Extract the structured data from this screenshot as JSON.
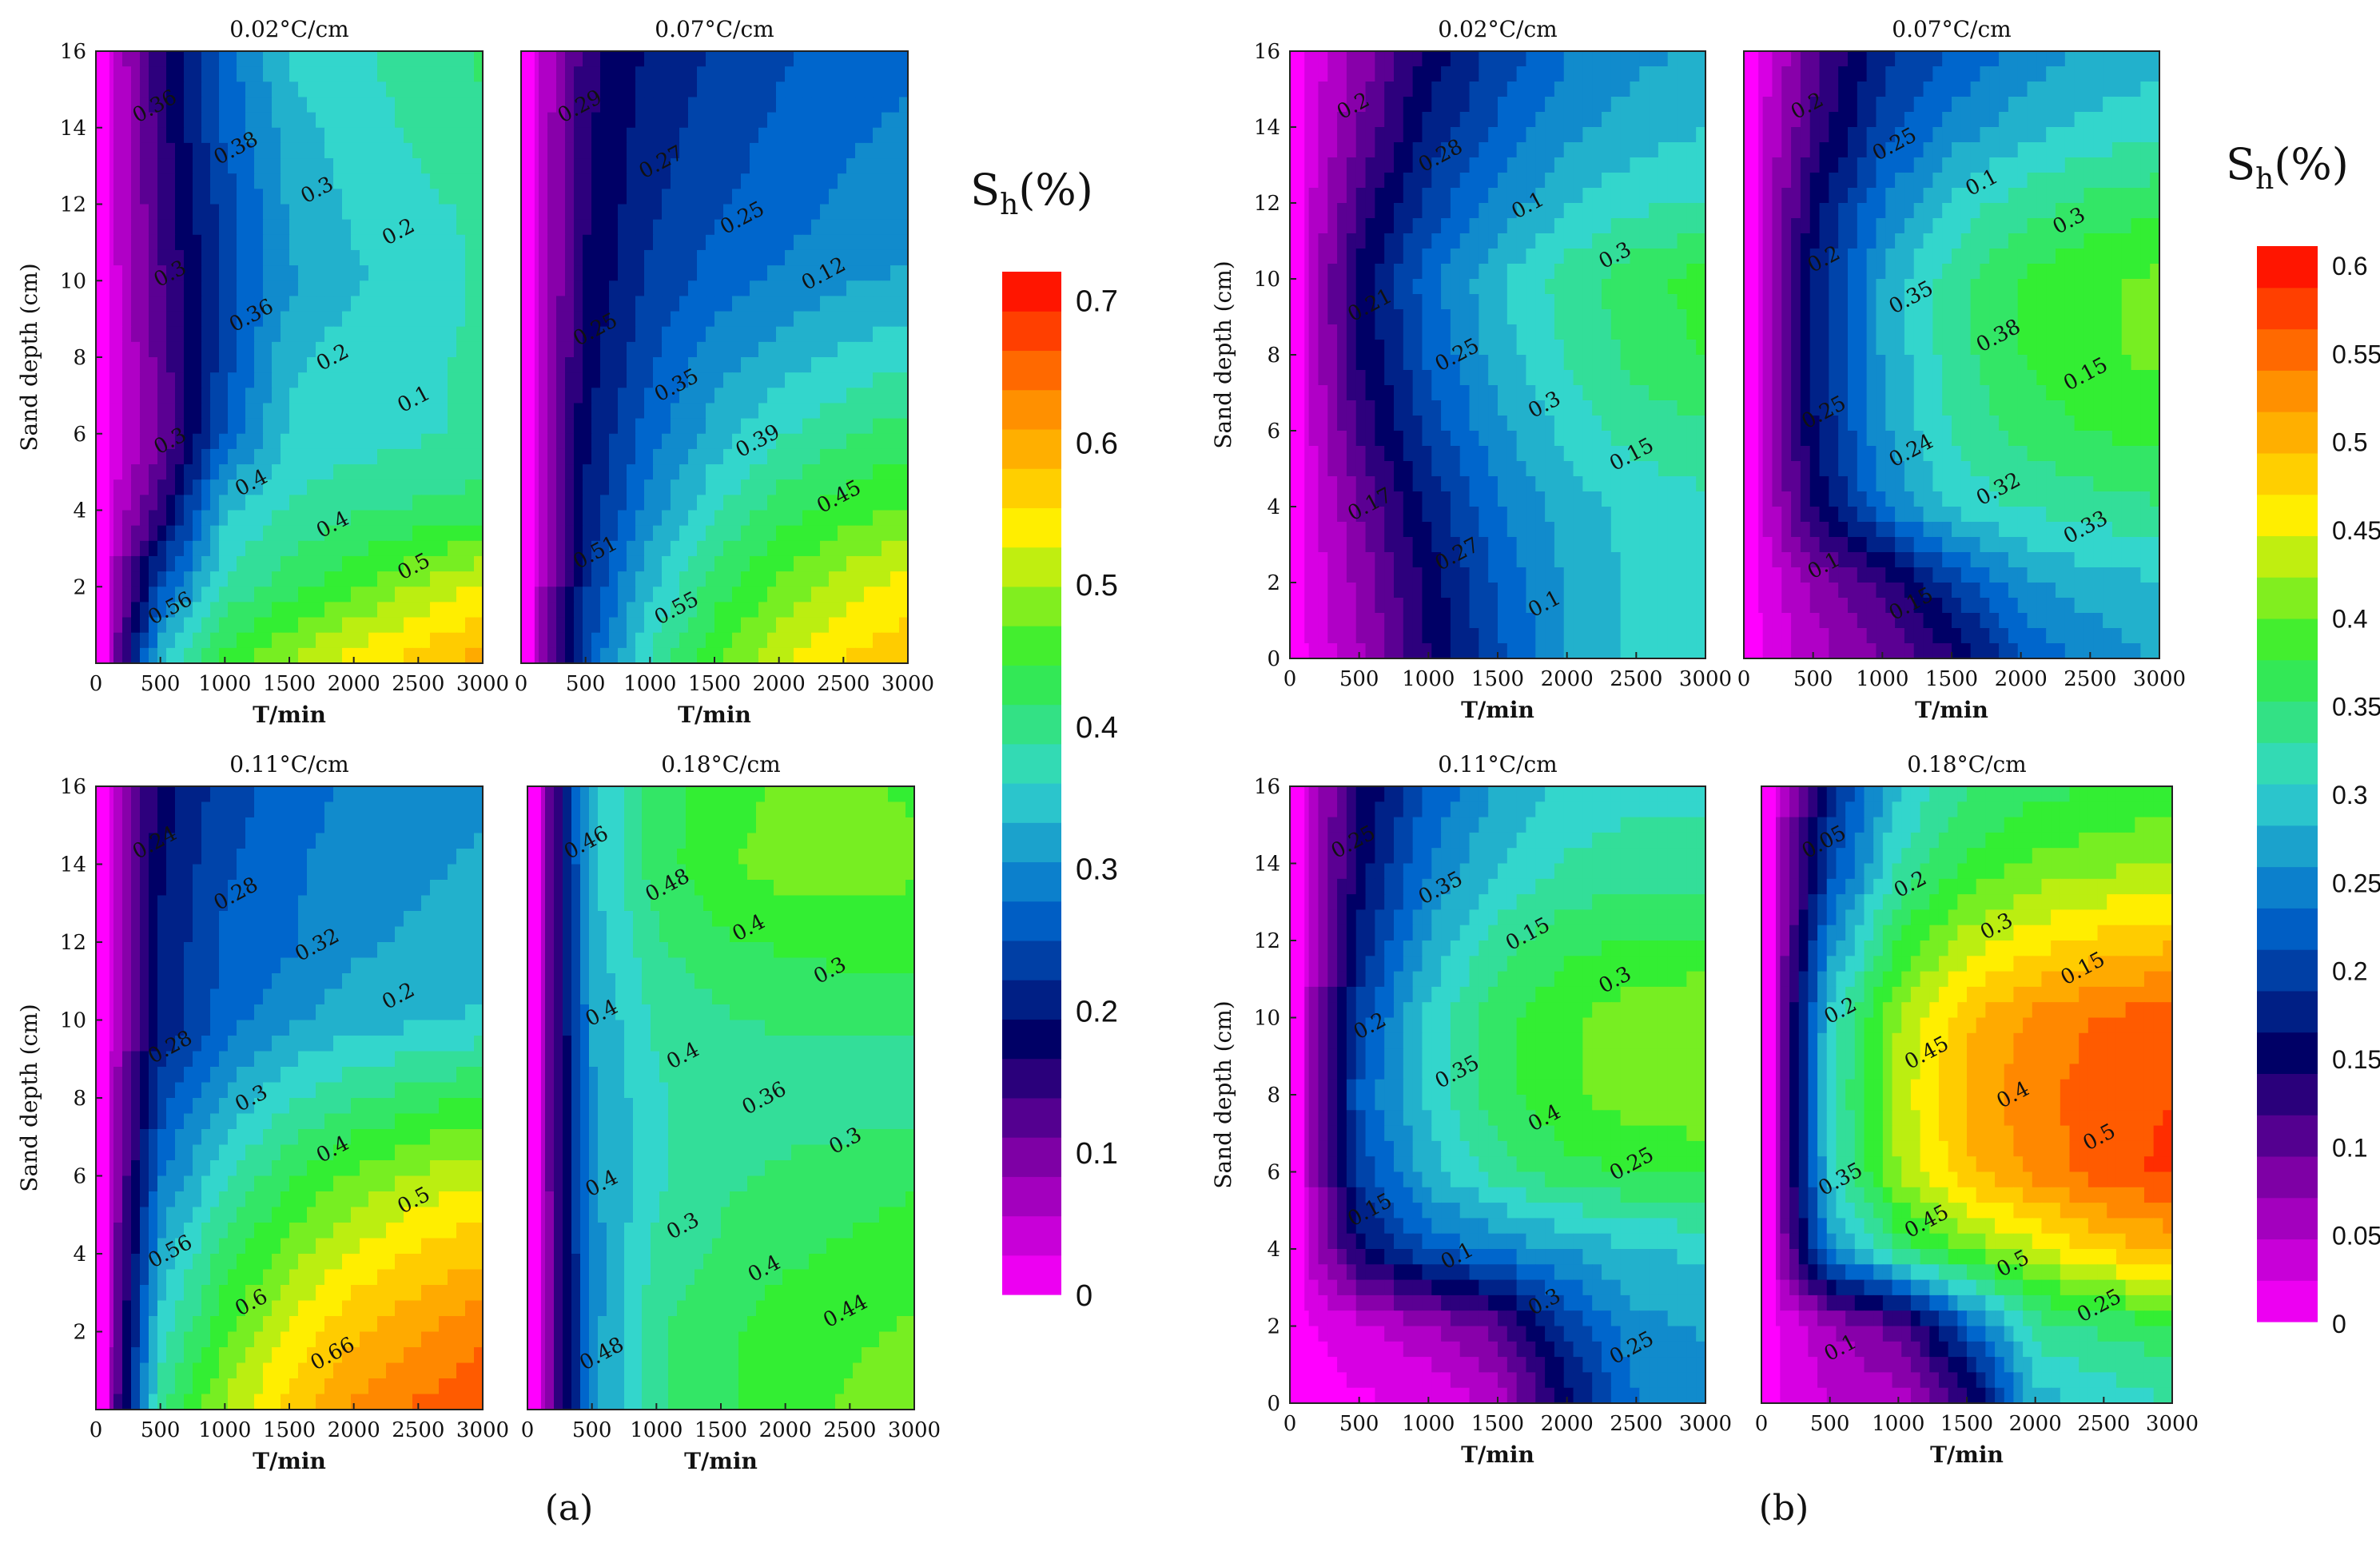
{
  "chart_data": [
    {
      "type": "heatmap",
      "title": "0.02°C/cm",
      "group": "a",
      "xlabel": "T/min",
      "ylabel": "Sand  depth  (cm)",
      "xlim": [
        0,
        3000
      ],
      "ylim": [
        0,
        16
      ],
      "xticks": [
        "0",
        "500",
        "1000",
        "1500",
        "2000",
        "2500",
        "3000"
      ],
      "yticks": [
        "2",
        "4",
        "6",
        "8",
        "10",
        "12",
        "14",
        "16"
      ],
      "x": [
        0,
        500,
        1000,
        1500,
        2000,
        2500,
        3000
      ],
      "y": [
        0,
        2,
        4,
        6,
        8,
        10,
        12,
        14,
        16
      ],
      "z": [
        [
          0,
          0.35,
          0.45,
          0.5,
          0.54,
          0.57,
          0.6
        ],
        [
          0,
          0.25,
          0.38,
          0.42,
          0.46,
          0.5,
          0.53
        ],
        [
          0,
          0.15,
          0.34,
          0.38,
          0.4,
          0.41,
          0.42
        ],
        [
          0,
          0.1,
          0.26,
          0.35,
          0.36,
          0.37,
          0.38
        ],
        [
          0,
          0.12,
          0.24,
          0.34,
          0.36,
          0.37,
          0.38
        ],
        [
          0,
          0.13,
          0.24,
          0.31,
          0.34,
          0.36,
          0.38
        ],
        [
          0,
          0.14,
          0.24,
          0.32,
          0.35,
          0.37,
          0.38
        ],
        [
          0,
          0.15,
          0.26,
          0.33,
          0.36,
          0.38,
          0.4
        ],
        [
          0,
          0.16,
          0.27,
          0.35,
          0.37,
          0.39,
          0.41
        ]
      ],
      "contour_labels": [
        "0.36",
        "0.38",
        "0.3",
        "0.2",
        "0.3",
        "0.36",
        "0.2",
        "0.1",
        "0.3",
        "0.4",
        "0.4",
        "0.5",
        "0.56"
      ]
    },
    {
      "type": "heatmap",
      "title": "0.07°C/cm",
      "group": "a",
      "xlabel": "T/min",
      "ylabel": "",
      "xlim": [
        0,
        3000
      ],
      "ylim": [
        0,
        16
      ],
      "xticks": [
        "0",
        "500",
        "1000",
        "1500",
        "2000",
        "2500",
        "3000"
      ],
      "yticks": [],
      "x": [
        0,
        500,
        1000,
        1500,
        2000,
        2500,
        3000
      ],
      "y": [
        0,
        2,
        4,
        6,
        8,
        10,
        12,
        14,
        16
      ],
      "z": [
        [
          0,
          0.25,
          0.38,
          0.46,
          0.52,
          0.56,
          0.58
        ],
        [
          0,
          0.22,
          0.34,
          0.42,
          0.47,
          0.51,
          0.54
        ],
        [
          0,
          0.2,
          0.3,
          0.37,
          0.42,
          0.45,
          0.47
        ],
        [
          0,
          0.19,
          0.27,
          0.33,
          0.37,
          0.4,
          0.42
        ],
        [
          0,
          0.18,
          0.25,
          0.3,
          0.33,
          0.35,
          0.37
        ],
        [
          0,
          0.17,
          0.23,
          0.27,
          0.29,
          0.31,
          0.32
        ],
        [
          0,
          0.16,
          0.22,
          0.25,
          0.27,
          0.29,
          0.3
        ],
        [
          0,
          0.16,
          0.21,
          0.24,
          0.26,
          0.28,
          0.29
        ],
        [
          0,
          0.15,
          0.2,
          0.23,
          0.25,
          0.27,
          0.28
        ]
      ],
      "contour_labels": [
        "0.29",
        "0.27",
        "0.25",
        "0.12",
        "0.25",
        "0.35",
        "0.39",
        "0.45",
        "0.51",
        "0.55"
      ]
    },
    {
      "type": "heatmap",
      "title": "0.11°C/cm",
      "group": "a",
      "xlabel": "T/min",
      "ylabel": "Sand  depth  (cm)",
      "xlim": [
        0,
        3000
      ],
      "ylim": [
        0,
        16
      ],
      "xticks": [
        "0",
        "500",
        "1000",
        "1500",
        "2000",
        "2500",
        "3000"
      ],
      "yticks": [
        "2",
        "4",
        "6",
        "8",
        "10",
        "12",
        "14",
        "16"
      ],
      "x": [
        0,
        500,
        1000,
        1500,
        2000,
        2500,
        3000
      ],
      "y": [
        0,
        2,
        4,
        6,
        8,
        10,
        12,
        14,
        16
      ],
      "z": [
        [
          0,
          0.4,
          0.5,
          0.57,
          0.62,
          0.65,
          0.67
        ],
        [
          0,
          0.36,
          0.46,
          0.53,
          0.58,
          0.61,
          0.64
        ],
        [
          0,
          0.32,
          0.42,
          0.48,
          0.53,
          0.56,
          0.58
        ],
        [
          0,
          0.28,
          0.37,
          0.43,
          0.47,
          0.5,
          0.52
        ],
        [
          0,
          0.24,
          0.32,
          0.37,
          0.4,
          0.42,
          0.44
        ],
        [
          0,
          0.2,
          0.27,
          0.31,
          0.33,
          0.34,
          0.35
        ],
        [
          0,
          0.2,
          0.26,
          0.28,
          0.31,
          0.32,
          0.33
        ],
        [
          0,
          0.19,
          0.25,
          0.28,
          0.3,
          0.31,
          0.32
        ],
        [
          0,
          0.18,
          0.24,
          0.27,
          0.29,
          0.3,
          0.31
        ]
      ],
      "contour_labels": [
        "0.24",
        "0.28",
        "0.32",
        "0.2",
        "0.28",
        "0.3",
        "0.4",
        "0.5",
        "0.56",
        "0.6",
        "0.66"
      ]
    },
    {
      "type": "heatmap",
      "title": "0.18°C/cm",
      "group": "a",
      "xlabel": "T/min",
      "ylabel": "",
      "xlim": [
        0,
        3000
      ],
      "ylim": [
        0,
        16
      ],
      "xticks": [
        "0",
        "500",
        "1000",
        "1500",
        "2000",
        "2500",
        "3000"
      ],
      "yticks": [],
      "x": [
        0,
        500,
        1000,
        1500,
        2000,
        2500,
        3000
      ],
      "y": [
        0,
        2,
        4,
        6,
        8,
        10,
        12,
        14,
        16
      ],
      "z": [
        [
          0,
          0.3,
          0.4,
          0.43,
          0.45,
          0.47,
          0.48
        ],
        [
          0,
          0.3,
          0.4,
          0.43,
          0.45,
          0.46,
          0.47
        ],
        [
          0,
          0.3,
          0.38,
          0.41,
          0.43,
          0.44,
          0.45
        ],
        [
          0,
          0.31,
          0.37,
          0.4,
          0.41,
          0.42,
          0.43
        ],
        [
          0,
          0.31,
          0.37,
          0.39,
          0.39,
          0.39,
          0.39
        ],
        [
          0,
          0.32,
          0.38,
          0.4,
          0.41,
          0.41,
          0.41
        ],
        [
          0,
          0.33,
          0.4,
          0.43,
          0.44,
          0.45,
          0.45
        ],
        [
          0,
          0.34,
          0.42,
          0.46,
          0.48,
          0.48,
          0.47
        ],
        [
          0,
          0.34,
          0.42,
          0.45,
          0.47,
          0.47,
          0.46
        ]
      ],
      "contour_labels": [
        "0.46",
        "0.48",
        "0.4",
        "0.3",
        "0.4",
        "0.4",
        "0.36",
        "0.3",
        "0.4",
        "0.3",
        "0.4",
        "0.44",
        "0.48"
      ]
    },
    {
      "type": "heatmap",
      "title": "0.02°C/cm",
      "group": "b",
      "xlabel": "T/min",
      "ylabel": "Sand  depth  (cm)",
      "xlim": [
        0,
        3000
      ],
      "ylim": [
        0,
        16
      ],
      "xticks": [
        "0",
        "500",
        "1000",
        "1500",
        "2000",
        "2500",
        "3000"
      ],
      "yticks": [
        "0",
        "2",
        "4",
        "6",
        "8",
        "10",
        "12",
        "14",
        "16"
      ],
      "x": [
        0,
        500,
        1000,
        1500,
        2000,
        2500,
        3000
      ],
      "y": [
        0,
        2,
        4,
        6,
        8,
        10,
        12,
        14,
        16
      ],
      "z": [
        [
          0,
          0.06,
          0.14,
          0.21,
          0.27,
          0.3,
          0.31
        ],
        [
          0,
          0.07,
          0.15,
          0.22,
          0.27,
          0.3,
          0.31
        ],
        [
          0,
          0.09,
          0.17,
          0.24,
          0.28,
          0.3,
          0.31
        ],
        [
          0,
          0.12,
          0.2,
          0.26,
          0.3,
          0.33,
          0.34
        ],
        [
          0,
          0.14,
          0.22,
          0.28,
          0.32,
          0.35,
          0.37
        ],
        [
          0,
          0.15,
          0.23,
          0.29,
          0.33,
          0.36,
          0.38
        ],
        [
          0,
          0.12,
          0.2,
          0.25,
          0.29,
          0.31,
          0.32
        ],
        [
          0,
          0.09,
          0.17,
          0.22,
          0.26,
          0.28,
          0.29
        ],
        [
          0,
          0.07,
          0.15,
          0.2,
          0.24,
          0.26,
          0.27
        ]
      ],
      "contour_labels": [
        "0.2",
        "0.28",
        "0.1",
        "0.3",
        "0.21",
        "0.25",
        "0.3",
        "0.15",
        "0.17",
        "0.27",
        "0.1"
      ]
    },
    {
      "type": "heatmap",
      "title": "0.07°C/cm",
      "group": "b",
      "xlabel": "T/min",
      "ylabel": "",
      "xlim": [
        0,
        3000
      ],
      "ylim": [
        0,
        16
      ],
      "xticks": [
        "0",
        "500",
        "1000",
        "1500",
        "2000",
        "2500",
        "3000"
      ],
      "yticks": [],
      "x": [
        0,
        500,
        1000,
        1500,
        2000,
        2500,
        3000
      ],
      "y": [
        0,
        2,
        4,
        6,
        8,
        10,
        12,
        14,
        16
      ],
      "z": [
        [
          0,
          0.05,
          0.09,
          0.13,
          0.22,
          0.25,
          0.27
        ],
        [
          0,
          0.07,
          0.12,
          0.2,
          0.26,
          0.28,
          0.29
        ],
        [
          0,
          0.14,
          0.24,
          0.3,
          0.32,
          0.33,
          0.34
        ],
        [
          0,
          0.16,
          0.26,
          0.32,
          0.35,
          0.37,
          0.38
        ],
        [
          0,
          0.17,
          0.27,
          0.33,
          0.37,
          0.39,
          0.4
        ],
        [
          0,
          0.17,
          0.27,
          0.33,
          0.37,
          0.39,
          0.4
        ],
        [
          0,
          0.15,
          0.24,
          0.3,
          0.33,
          0.35,
          0.36
        ],
        [
          0,
          0.12,
          0.2,
          0.25,
          0.28,
          0.3,
          0.31
        ],
        [
          0,
          0.1,
          0.18,
          0.22,
          0.25,
          0.27,
          0.28
        ]
      ],
      "contour_labels": [
        "0.2",
        "0.25",
        "0.1",
        "0.3",
        "0.2",
        "0.35",
        "0.38",
        "0.15",
        "0.25",
        "0.24",
        "0.32",
        "0.33",
        "0.1",
        "0.15"
      ]
    },
    {
      "type": "heatmap",
      "title": "0.11°C/cm",
      "group": "b",
      "xlabel": "T/min",
      "ylabel": "Sand  depth  (cm)",
      "xlim": [
        0,
        3000
      ],
      "ylim": [
        0,
        16
      ],
      "xticks": [
        "0",
        "500",
        "1000",
        "1500",
        "2000",
        "2500",
        "3000"
      ],
      "yticks": [
        "0",
        "2",
        "4",
        "6",
        "8",
        "10",
        "12",
        "14",
        "16"
      ],
      "x": [
        0,
        500,
        1000,
        1500,
        2000,
        2500,
        3000
      ],
      "y": [
        0,
        2,
        4,
        6,
        8,
        10,
        12,
        14,
        16
      ],
      "z": [
        [
          0,
          0.01,
          0.01,
          0.05,
          0.15,
          0.24,
          0.26
        ],
        [
          0,
          0.03,
          0.06,
          0.1,
          0.2,
          0.26,
          0.27
        ],
        [
          0,
          0.15,
          0.22,
          0.25,
          0.27,
          0.29,
          0.3
        ],
        [
          0,
          0.2,
          0.28,
          0.33,
          0.36,
          0.37,
          0.37
        ],
        [
          0,
          0.22,
          0.3,
          0.36,
          0.39,
          0.41,
          0.42
        ],
        [
          0,
          0.2,
          0.3,
          0.36,
          0.39,
          0.41,
          0.42
        ],
        [
          0,
          0.17,
          0.27,
          0.33,
          0.36,
          0.37,
          0.37
        ],
        [
          0,
          0.15,
          0.24,
          0.29,
          0.32,
          0.33,
          0.33
        ],
        [
          0,
          0.14,
          0.22,
          0.27,
          0.3,
          0.31,
          0.31
        ]
      ],
      "contour_labels": [
        "0.25",
        "0.35",
        "0.15",
        "0.3",
        "0.2",
        "0.35",
        "0.4",
        "0.25",
        "0.15",
        "0.1",
        "0.3",
        "0.25"
      ]
    },
    {
      "type": "heatmap",
      "title": "0.18°C/cm",
      "group": "b",
      "xlabel": "T/min",
      "ylabel": "",
      "xlim": [
        0,
        3000
      ],
      "ylim": [
        0,
        16
      ],
      "xticks": [
        "0",
        "500",
        "1000",
        "1500",
        "2000",
        "2500",
        "3000"
      ],
      "yticks": [],
      "x": [
        0,
        500,
        1000,
        1500,
        2000,
        2500,
        3000
      ],
      "y": [
        0,
        2,
        4,
        6,
        8,
        10,
        12,
        14,
        16
      ],
      "z": [
        [
          0,
          0.04,
          0.05,
          0.12,
          0.28,
          0.3,
          0.32
        ],
        [
          0,
          0.06,
          0.1,
          0.22,
          0.33,
          0.35,
          0.36
        ],
        [
          0,
          0.25,
          0.35,
          0.4,
          0.44,
          0.48,
          0.5
        ],
        [
          0,
          0.3,
          0.42,
          0.49,
          0.53,
          0.56,
          0.58
        ],
        [
          0,
          0.31,
          0.43,
          0.5,
          0.54,
          0.56,
          0.57
        ],
        [
          0,
          0.3,
          0.42,
          0.49,
          0.53,
          0.55,
          0.56
        ],
        [
          0,
          0.25,
          0.37,
          0.43,
          0.46,
          0.48,
          0.49
        ],
        [
          0,
          0.2,
          0.32,
          0.37,
          0.4,
          0.41,
          0.42
        ],
        [
          0,
          0.18,
          0.29,
          0.34,
          0.36,
          0.37,
          0.38
        ]
      ],
      "contour_labels": [
        "0.05",
        "0.2",
        "0.3",
        "0.15",
        "0.2",
        "0.45",
        "0.4",
        "0.5",
        "0.35",
        "0.45",
        "0.5",
        "0.25",
        "0.1"
      ]
    }
  ],
  "colorbars": [
    {
      "label": "S",
      "sub": "h",
      "unit": "(%)",
      "max": 0.72,
      "ticks": [
        "0",
        "0.1",
        "0.2",
        "0.3",
        "0.4",
        "0.5",
        "0.6",
        "0.7"
      ],
      "tick_values": [
        0,
        0.1,
        0.2,
        0.3,
        0.4,
        0.5,
        0.6,
        0.7
      ]
    },
    {
      "label": "S",
      "sub": "h",
      "unit": "(%)",
      "max": 0.61,
      "ticks": [
        "0",
        "0.05",
        "0.1",
        "0.15",
        "0.2",
        "0.25",
        "0.3",
        "0.35",
        "0.4",
        "0.45",
        "0.5",
        "0.55",
        "0.6"
      ],
      "tick_values": [
        0,
        0.05,
        0.1,
        0.15,
        0.2,
        0.25,
        0.3,
        0.35,
        0.4,
        0.45,
        0.5,
        0.55,
        0.6
      ]
    }
  ],
  "panel_labels": [
    "a",
    "b"
  ],
  "colors": {
    "c0": "#ff00ff",
    "c1": "#8800aa",
    "c2": "#000066",
    "c3": "#0066cc",
    "c4": "#33d6cc",
    "c5": "#33ee33",
    "c6": "#ffee00",
    "c7": "#ff8800",
    "c8": "#ff0000"
  }
}
